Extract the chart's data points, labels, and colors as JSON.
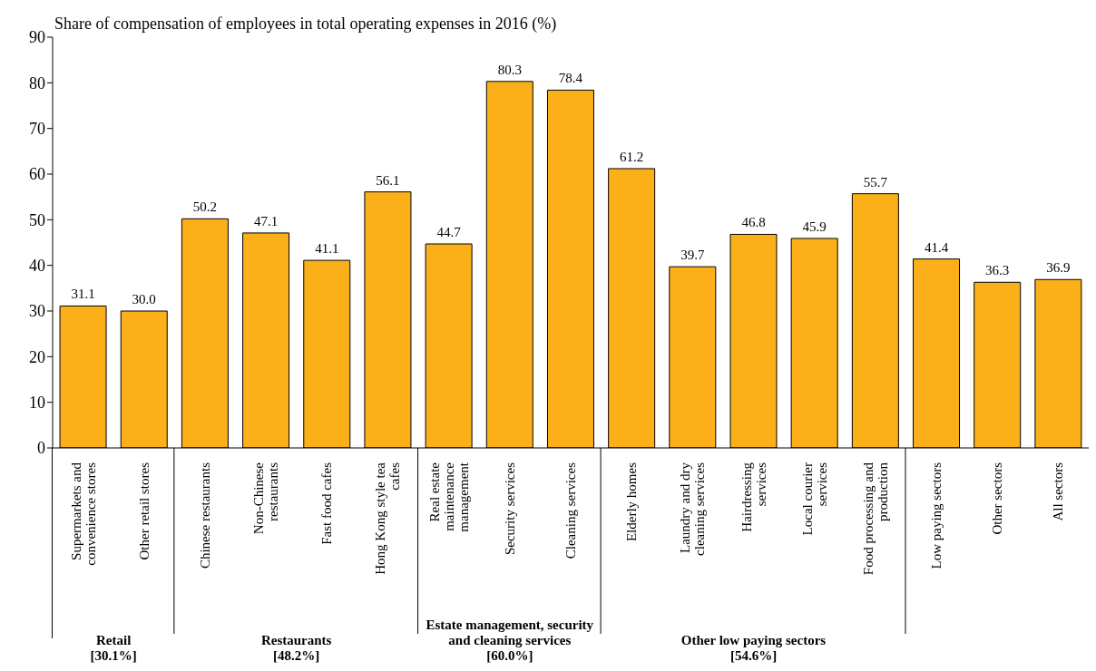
{
  "chart_data": {
    "type": "bar",
    "title": "Share of compensation of employees in total operating expenses in 2016 (%)",
    "categories": [
      "Supermarkets and convenience stores",
      "Other retail stores",
      "Chinese restaurants",
      "Non-Chinese restaurants",
      "Fast food cafes",
      "Hong Kong style tea cafes",
      "Real estate maintenance management",
      "Security services",
      "Cleaning services",
      "Elderly homes",
      "Laundry and dry cleaning services",
      "Hairdressing services",
      "Local courier services",
      "Food processing and production",
      "Low paying sectors",
      "Other sectors",
      "All sectors"
    ],
    "values": [
      31.1,
      30.0,
      50.2,
      47.1,
      41.1,
      56.1,
      44.7,
      80.3,
      78.4,
      61.2,
      39.7,
      46.8,
      45.9,
      55.7,
      41.4,
      36.3,
      36.9
    ],
    "value_labels": [
      "31.1",
      "30.0",
      "50.2",
      "47.1",
      "41.1",
      "56.1",
      "44.7",
      "80.3",
      "78.4",
      "61.2",
      "39.7",
      "46.8",
      "45.9",
      "55.7",
      "41.4",
      "36.3",
      "36.9"
    ],
    "color": "#fbb01a",
    "ylim": [
      0,
      90
    ],
    "yticks": [
      0,
      10,
      20,
      30,
      40,
      50,
      60,
      70,
      80,
      90
    ],
    "grid": false,
    "legend": false,
    "annotations": [
      "Retail [30.1%]",
      "Restaurants [48.2%]",
      "Estate management, security and cleaning services [60.0%]",
      "Other low paying sectors [54.6%]"
    ]
  }
}
